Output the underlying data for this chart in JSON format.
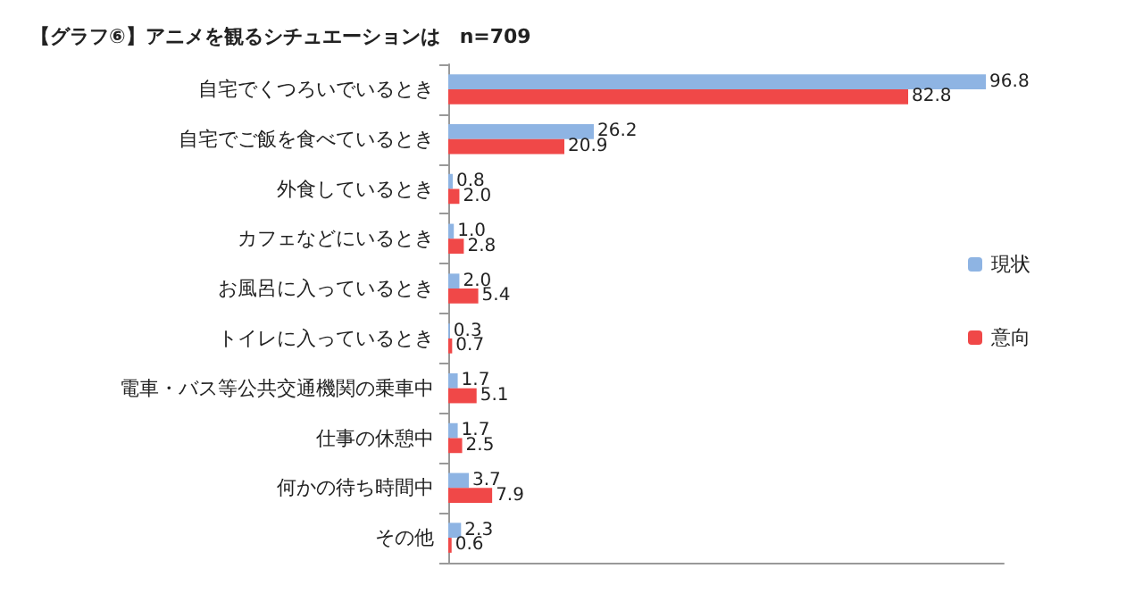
{
  "chart_data": {
    "type": "bar",
    "orientation": "horizontal",
    "title": "【グラフ⑥】アニメを観るシチュエーションは　n=709",
    "categories": [
      "自宅でくつろいでいるとき",
      "自宅でご飯を食べているとき",
      "外食しているとき",
      "カフェなどにいるとき",
      "お風呂に入っているとき",
      "トイレに入っているとき",
      "電車・バス等公共交通機関の乗車中",
      "仕事の休憩中",
      "何かの待ち時間中",
      "その他"
    ],
    "series": [
      {
        "name": "現状",
        "color": "#8eb4e3",
        "values": [
          96.8,
          26.2,
          0.8,
          1.0,
          2.0,
          0.3,
          1.7,
          1.7,
          3.7,
          2.3
        ],
        "value_labels": [
          "96.8",
          "26.2",
          "0.8",
          "1.0",
          "2.0",
          "0.3",
          "1.7",
          "1.7",
          "3.7",
          "2.3"
        ]
      },
      {
        "name": "意向",
        "color": "#f04848",
        "values": [
          82.8,
          20.9,
          2.0,
          2.8,
          5.4,
          0.7,
          5.1,
          2.5,
          7.9,
          0.6
        ],
        "value_labels": [
          "82.8",
          "20.9",
          "2.0",
          "2.8",
          "5.4",
          "0.7",
          "5.1",
          "2.5",
          "7.9",
          "0.6"
        ]
      }
    ],
    "legend": "right",
    "grid": false
  }
}
